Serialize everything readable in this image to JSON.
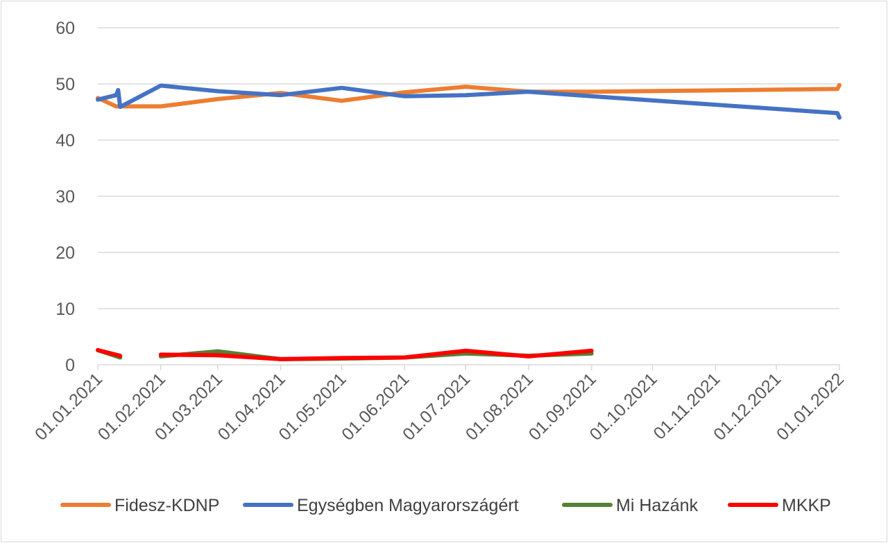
{
  "chart_data": {
    "type": "line",
    "title": "",
    "xlabel": "",
    "ylabel": "",
    "ylim": [
      0,
      60
    ],
    "y_ticks": [
      0,
      10,
      20,
      30,
      40,
      50,
      60
    ],
    "x_range": [
      "2021-01-01",
      "2022-01-01"
    ],
    "x_tick_dates": [
      "2021-01-01",
      "2021-02-01",
      "2021-03-01",
      "2021-04-01",
      "2021-05-01",
      "2021-06-01",
      "2021-07-01",
      "2021-08-01",
      "2021-09-01",
      "2021-10-01",
      "2021-11-01",
      "2021-12-01",
      "2022-01-01"
    ],
    "x_tick_labels": [
      "01.01.2021",
      "01.02.2021",
      "01.03.2021",
      "01.04.2021",
      "01.05.2021",
      "01.06.2021",
      "01.07.2021",
      "01.08.2021",
      "01.09.2021",
      "01.10.2021",
      "01.11.2021",
      "01.12.2021",
      "01.01.2022"
    ],
    "grid": "horizontal",
    "legend_position": "bottom",
    "series": [
      {
        "name": "Fidesz-KDNP",
        "color": "#ED7D31",
        "points": [
          [
            "2021-01-01",
            47.5
          ],
          [
            "2021-01-10",
            46.0
          ],
          [
            "2021-02-01",
            46.0
          ],
          [
            "2021-03-01",
            47.3
          ],
          [
            "2021-04-01",
            48.4
          ],
          [
            "2021-05-01",
            47.0
          ],
          [
            "2021-06-01",
            48.5
          ],
          [
            "2021-07-01",
            49.5
          ],
          [
            "2021-08-01",
            48.6
          ],
          [
            "2021-09-01",
            48.6
          ],
          [
            "2021-12-31",
            49.1
          ],
          [
            "2022-01-01",
            49.8
          ]
        ]
      },
      {
        "name": "Egységben Magyarországért",
        "color": "#4472C4",
        "points": [
          [
            "2021-01-01",
            47.2
          ],
          [
            "2021-01-10",
            48.0
          ],
          [
            "2021-01-11",
            48.9
          ],
          [
            "2021-01-12",
            45.9
          ],
          [
            "2021-02-01",
            49.7
          ],
          [
            "2021-03-01",
            48.7
          ],
          [
            "2021-04-01",
            48.0
          ],
          [
            "2021-05-01",
            49.3
          ],
          [
            "2021-06-01",
            47.8
          ],
          [
            "2021-07-01",
            48.0
          ],
          [
            "2021-08-01",
            48.6
          ],
          [
            "2021-09-01",
            47.8
          ],
          [
            "2021-12-31",
            44.8
          ],
          [
            "2022-01-01",
            44.0
          ]
        ]
      },
      {
        "name": "Mi Hazánk",
        "color": "#548235",
        "segments": [
          [
            [
              "2021-01-01",
              2.6
            ],
            [
              "2021-01-12",
              1.3
            ]
          ],
          [
            [
              "2021-02-01",
              1.5
            ],
            [
              "2021-03-01",
              2.4
            ],
            [
              "2021-04-01",
              1.0
            ],
            [
              "2021-05-01",
              1.1
            ],
            [
              "2021-06-01",
              1.3
            ],
            [
              "2021-07-01",
              2.0
            ],
            [
              "2021-08-01",
              1.6
            ],
            [
              "2021-09-01",
              2.0
            ]
          ]
        ]
      },
      {
        "name": "MKKP",
        "color": "#FF0000",
        "segments": [
          [
            [
              "2021-01-01",
              2.6
            ],
            [
              "2021-01-12",
              1.6
            ]
          ],
          [
            [
              "2021-02-01",
              1.8
            ],
            [
              "2021-03-01",
              1.7
            ],
            [
              "2021-04-01",
              1.0
            ],
            [
              "2021-05-01",
              1.2
            ],
            [
              "2021-06-01",
              1.3
            ],
            [
              "2021-07-01",
              2.5
            ],
            [
              "2021-08-01",
              1.5
            ],
            [
              "2021-09-01",
              2.5
            ]
          ]
        ]
      }
    ]
  }
}
